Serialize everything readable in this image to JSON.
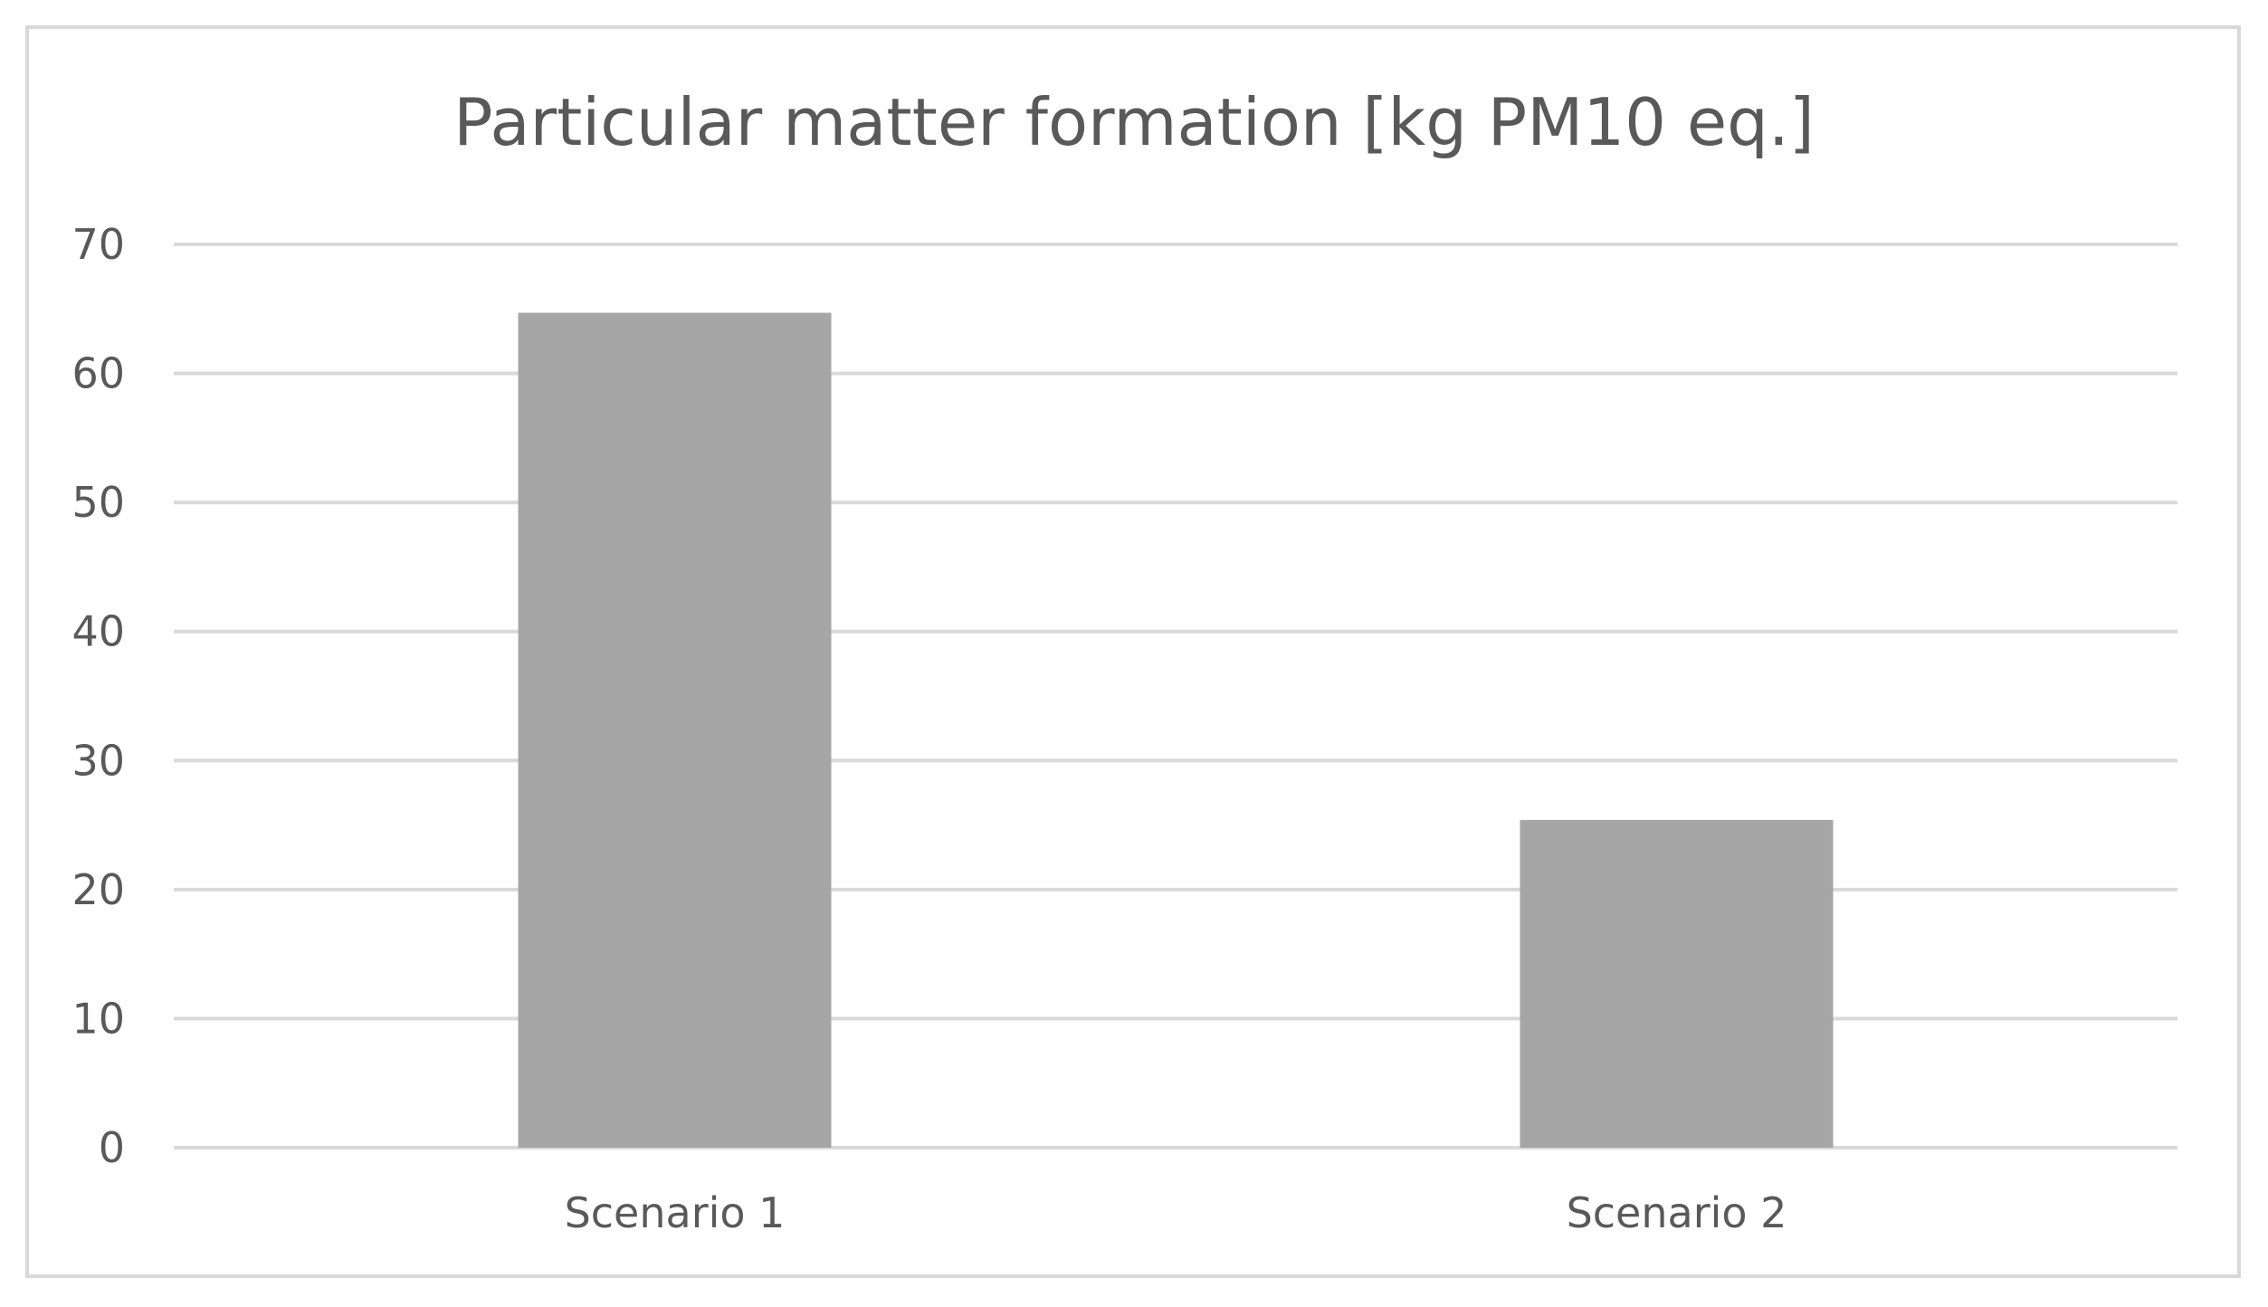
{
  "chart_data": {
    "type": "bar",
    "title": "Particular matter formation [kg PM10 eq.]",
    "categories": [
      "Scenario 1",
      "Scenario 2"
    ],
    "values": [
      64.7,
      25.4
    ],
    "xlabel": "",
    "ylabel": "",
    "ylim": [
      0,
      70
    ],
    "yticks": [
      0,
      10,
      20,
      30,
      40,
      50,
      60,
      70
    ],
    "grid": true,
    "legend": "none",
    "bar_color": "#a6a6a6",
    "grid_color": "#d9d9d9",
    "text_color": "#595959"
  }
}
